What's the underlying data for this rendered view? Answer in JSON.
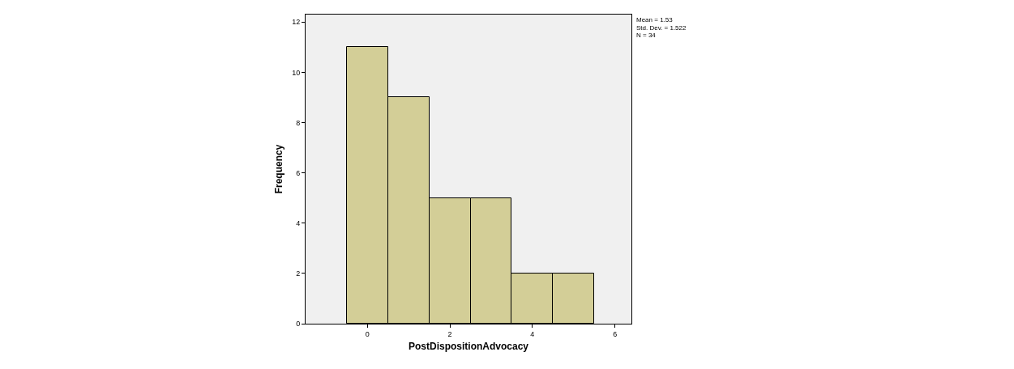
{
  "chart_data": {
    "type": "histogram",
    "xlabel": "PostDispositionAdvocacy",
    "ylabel": "Frequency",
    "bins": [
      -0.5,
      0.5,
      1.5,
      2.5,
      3.5,
      4.5,
      5.5
    ],
    "values": [
      11,
      9,
      5,
      5,
      2,
      2
    ],
    "color": "#d3ce97",
    "xlim": [
      -1.5,
      6.4
    ],
    "xticks": [
      0,
      2,
      4,
      6
    ],
    "ylim": [
      0,
      12.3
    ],
    "yticks": [
      0,
      2,
      4,
      6,
      8,
      10,
      12
    ],
    "grid": false,
    "annotations": [
      "Mean = 1.53",
      "Std. Dev. = 1.522",
      "N = 34"
    ]
  }
}
